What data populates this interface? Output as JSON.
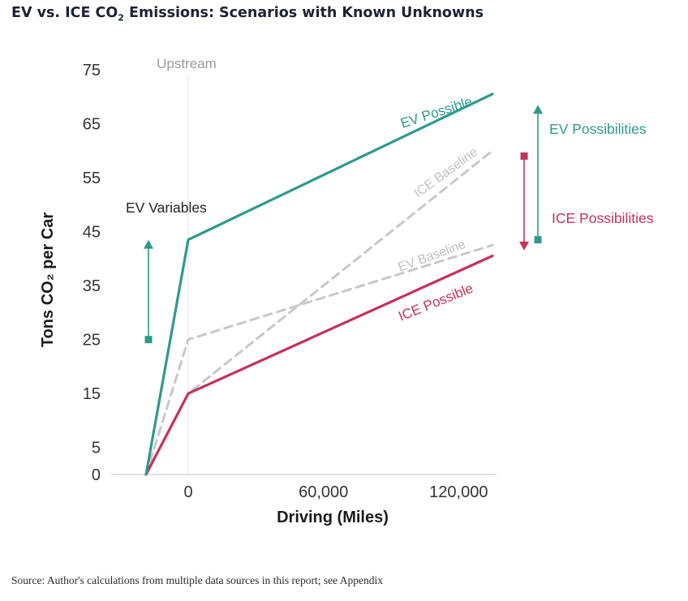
{
  "title": {
    "prefix": "EV vs. ICE CO",
    "sub": "2",
    "suffix": " Emissions: Scenarios with Known Unknowns"
  },
  "source": "Source: Author's calculations from multiple data sources in this report; see Appendix",
  "chart_data": {
    "type": "line",
    "xlabel": "Driving (Miles)",
    "ylabel": "Tons CO₂ per Car",
    "x_ticks": [
      "0",
      "60,000",
      "120,000"
    ],
    "y_ticks": [
      0,
      5,
      15,
      25,
      35,
      45,
      55,
      65,
      75
    ],
    "xlim": [
      -20000,
      135000
    ],
    "ylim": [
      0,
      75
    ],
    "region_label": "Upstream",
    "series": [
      {
        "name": "EV Possible",
        "style": "solid",
        "color": "#2e9a8e",
        "x": [
          -20000,
          0,
          135000
        ],
        "y": [
          0,
          43.5,
          70.5
        ]
      },
      {
        "name": "ICE Possible",
        "style": "solid",
        "color": "#c7305c",
        "x": [
          -20000,
          0,
          135000
        ],
        "y": [
          0,
          15,
          40.5
        ]
      },
      {
        "name": "ICE Baseline",
        "style": "dashed",
        "color": "#c8c8c8",
        "x": [
          -20000,
          0,
          135000
        ],
        "y": [
          0,
          15,
          60
        ]
      },
      {
        "name": "EV Baseline",
        "style": "dashed",
        "color": "#c8c8c8",
        "x": [
          -20000,
          0,
          135000
        ],
        "y": [
          0,
          25,
          42.5
        ]
      }
    ],
    "annotations": {
      "ev_variables": {
        "label": "EV Variables",
        "color": "#2e9a8e",
        "y_from": 25,
        "y_to": 43.5
      },
      "ev_possibilities": {
        "label": "EV Possibilities",
        "color": "#2e9a8e",
        "y_from": 43.5,
        "y_to": 68.5
      },
      "ice_possibilities": {
        "label": "ICE Possibilities",
        "color": "#c7305c",
        "y_from": 59,
        "y_to": 41.5
      }
    }
  }
}
